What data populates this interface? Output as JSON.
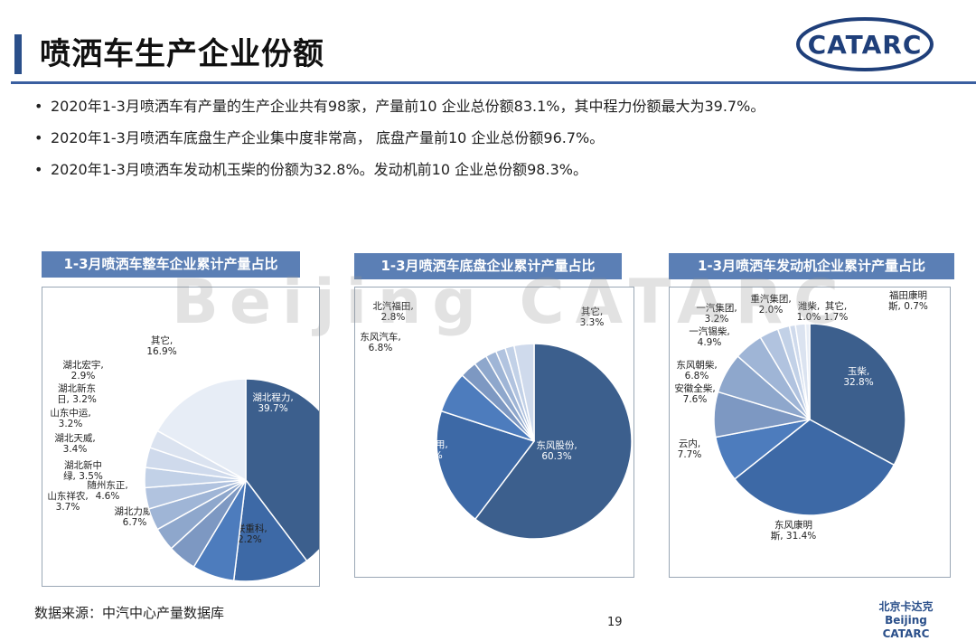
{
  "header": {
    "title": "喷洒车生产企业份额",
    "logo_text": "CATARC"
  },
  "bullets": [
    "2020年1-3月喷洒车有产量的生产企业共有98家，产量前10 企业总份额83.1%，其中程力份额最大为39.7%。",
    "2020年1-3月喷洒车底盘生产企业集中度非常高， 底盘产量前10 企业总份额96.7%。",
    "2020年1-3月喷洒车发动机玉柴的份额为32.8%。发动机前10 企业总份额98.3%。"
  ],
  "watermark": "Beijing CATARC",
  "chart_data": [
    {
      "type": "pie",
      "title": "1-3月喷洒车整车企业累计产量占比",
      "slices": [
        {
          "label": "湖北程力",
          "value": 39.7,
          "display": "39.7%"
        },
        {
          "label": "中联重科",
          "value": 12.2,
          "display": "12.2%"
        },
        {
          "label": "湖北力威",
          "value": 6.7,
          "display": "6.7%"
        },
        {
          "label": "随州东正",
          "value": 4.6,
          "display": "4.6%"
        },
        {
          "label": "山东祥农",
          "value": 3.7,
          "display": "3.7%"
        },
        {
          "label": "湖北新中绿",
          "value": 3.5,
          "display": "3.5%"
        },
        {
          "label": "湖北天威",
          "value": 3.4,
          "display": "3.4%"
        },
        {
          "label": "山东中运",
          "value": 3.2,
          "display": "3.2%"
        },
        {
          "label": "湖北新东日",
          "value": 3.2,
          "display": "3.2%"
        },
        {
          "label": "湖北宏宇",
          "value": 2.9,
          "display": "2.9%"
        },
        {
          "label": "其它",
          "value": 16.9,
          "display": "16.9%"
        }
      ]
    },
    {
      "type": "pie",
      "title": "1-3月喷洒车底盘企业累计产量占比",
      "slices": [
        {
          "label": "东风股份",
          "value": 60.3,
          "display": "60.3%"
        },
        {
          "label": "东风商用",
          "value": 19.7,
          "display": "19.7%"
        },
        {
          "label": "东风汽车",
          "value": 6.8,
          "display": "6.8%"
        },
        {
          "label": "北汽福田",
          "value": 2.8,
          "display": "2.8%"
        },
        {
          "label": "",
          "value": 2.2,
          "display": ""
        },
        {
          "label": "",
          "value": 1.8,
          "display": ""
        },
        {
          "label": "",
          "value": 1.6,
          "display": ""
        },
        {
          "label": "",
          "value": 1.5,
          "display": ""
        },
        {
          "label": "其它",
          "value": 3.3,
          "display": "3.3%"
        }
      ]
    },
    {
      "type": "pie",
      "title": "1-3月喷洒车发动机企业累计产量占比",
      "slices": [
        {
          "label": "玉柴",
          "value": 32.8,
          "display": "32.8%"
        },
        {
          "label": "东风康明斯",
          "value": 31.4,
          "display": "31.4%"
        },
        {
          "label": "云内",
          "value": 7.7,
          "display": "7.7%"
        },
        {
          "label": "安徽全柴",
          "value": 7.6,
          "display": "7.6%"
        },
        {
          "label": "东风朝柴",
          "value": 6.8,
          "display": "6.8%"
        },
        {
          "label": "一汽锡柴",
          "value": 4.9,
          "display": "4.9%"
        },
        {
          "label": "一汽集团",
          "value": 3.2,
          "display": "3.2%"
        },
        {
          "label": "重汽集团",
          "value": 2.0,
          "display": "2.0%"
        },
        {
          "label": "潍柴",
          "value": 1.0,
          "display": "1.0%"
        },
        {
          "label": "其它",
          "value": 1.7,
          "display": "1.7%"
        },
        {
          "label": "福田康明斯",
          "value": 0.7,
          "display": "0.7%"
        }
      ]
    }
  ],
  "colors": {
    "accent": "#2a4f8a",
    "slices": [
      "#3c5f8d",
      "#3d69a6",
      "#4d7cbd",
      "#7d98c2",
      "#8ea7cc",
      "#9fb5d6",
      "#b1c3df",
      "#c2d1e7",
      "#cfdaec",
      "#dbe3f0",
      "#e7edf6"
    ]
  },
  "footer": {
    "source": "数据来源：中汽中心产量数据库",
    "page": "19",
    "logo_cn": "北京卡达克",
    "logo_en": "Beijing CATARC"
  }
}
